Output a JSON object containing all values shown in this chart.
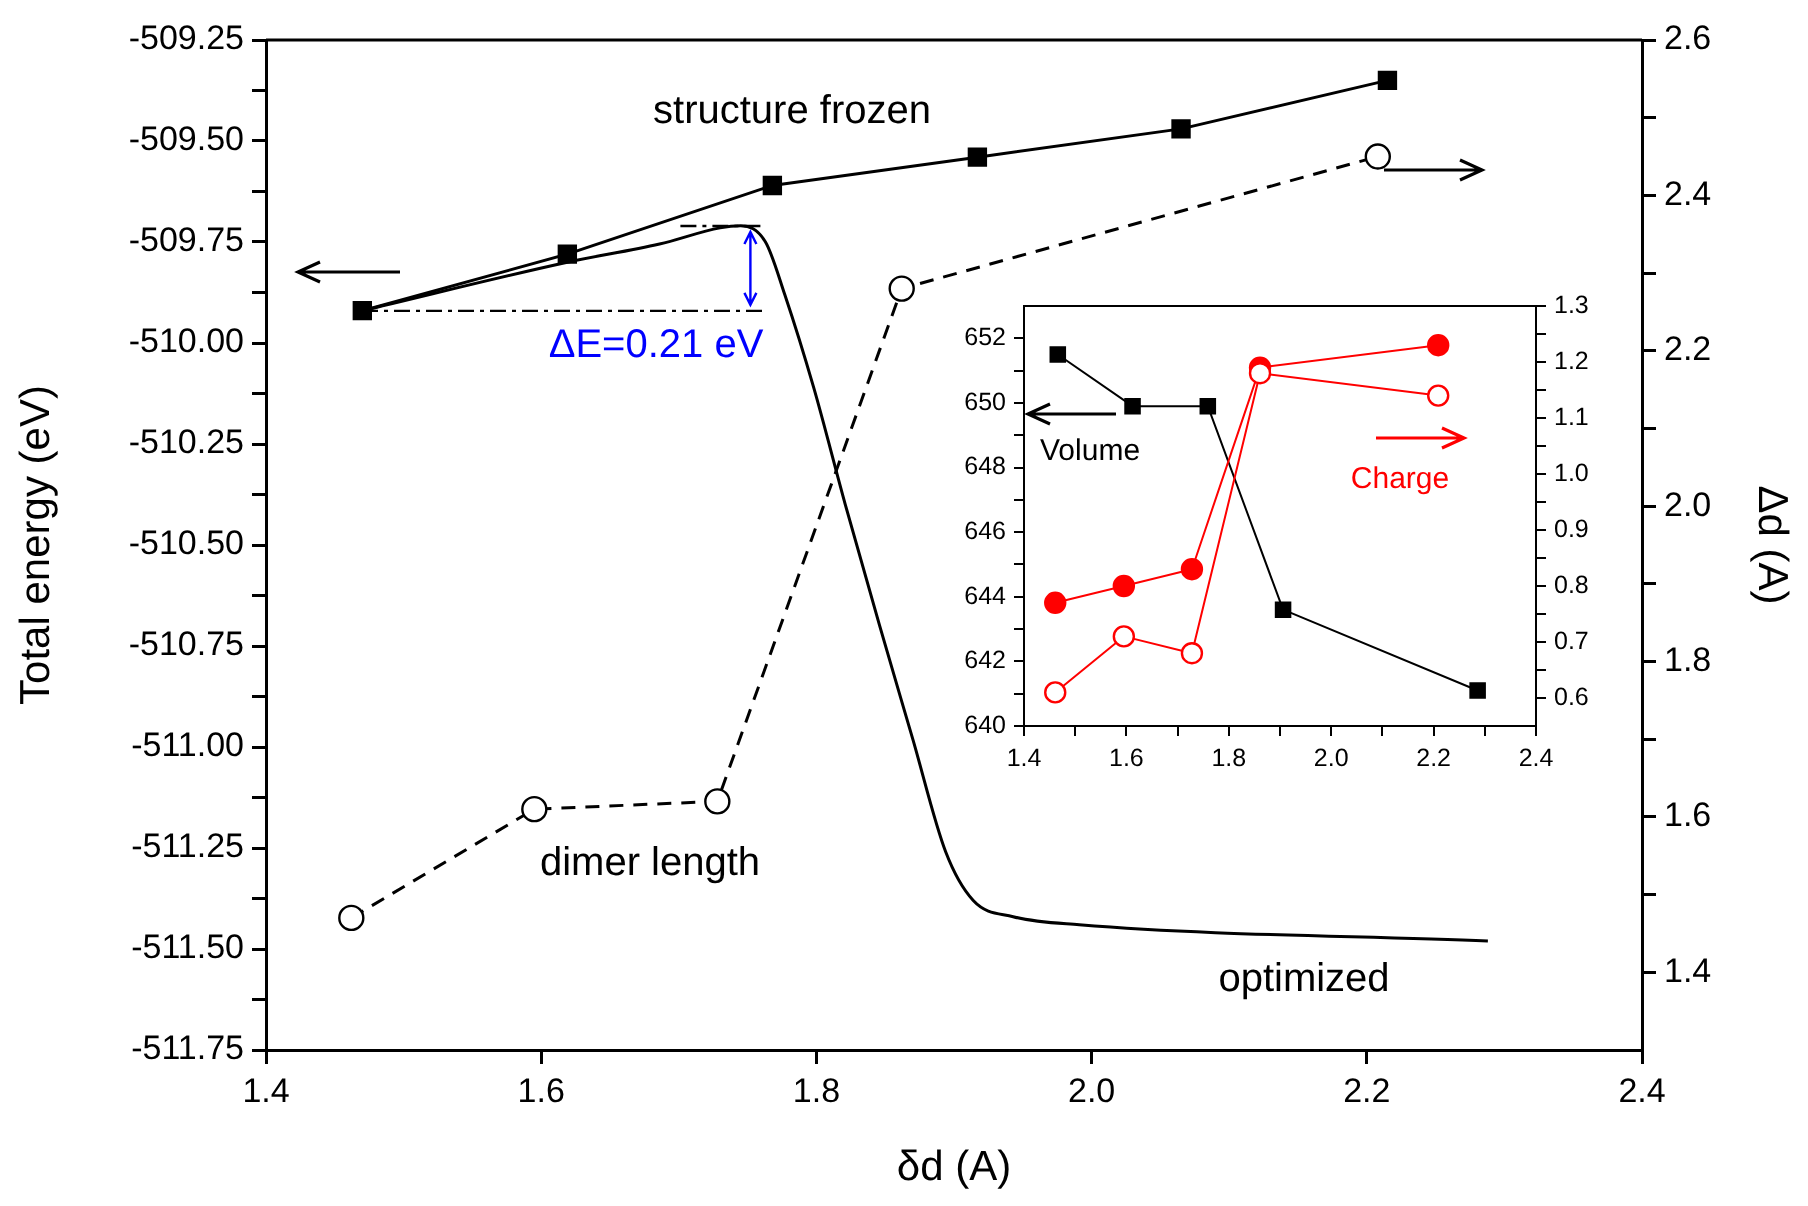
{
  "chart_data": [
    {
      "type": "line",
      "xlabel": "δd (A)",
      "ylabel": "Total energy (eV)",
      "y2label": "Δd (A)",
      "xlim": [
        1.4,
        2.4
      ],
      "xticks": [
        1.4,
        1.6,
        1.8,
        {
          "value": 2,
          "label": "2.0"
        },
        2.2,
        2.4
      ],
      "ylim": [
        -511.75,
        -509.25
      ],
      "yticks": [
        -509.25,
        {
          "value": -509.375,
          "label": null
        },
        {
          "value": -509.5,
          "label": "-509.50"
        },
        {
          "value": -509.625,
          "label": null
        },
        -509.75,
        {
          "value": -509.875,
          "label": null
        },
        {
          "value": -510,
          "label": "-510.00"
        },
        {
          "value": -510.125,
          "label": null
        },
        -510.25,
        {
          "value": -510.375,
          "label": null
        },
        {
          "value": -510.5,
          "label": "-510.50"
        },
        {
          "value": -510.625,
          "label": null
        },
        -510.75,
        {
          "value": -510.875,
          "label": null
        },
        {
          "value": -511,
          "label": "-511.00"
        },
        {
          "value": -511.125,
          "label": null
        },
        -511.25,
        {
          "value": -511.375,
          "label": null
        },
        {
          "value": -511.5,
          "label": "-511.50"
        },
        {
          "value": -511.625,
          "label": null
        },
        -511.75
      ],
      "y2lim": [
        1.3,
        2.6
      ],
      "y2ticks": [
        1.4,
        {
          "value": 1.5,
          "label": null
        },
        1.6,
        {
          "value": 1.7,
          "label": null
        },
        1.8,
        {
          "value": 1.9,
          "label": null
        },
        {
          "value": 2,
          "label": "2.0"
        },
        {
          "value": 2.1,
          "label": null
        },
        2.2,
        {
          "value": 2.3,
          "label": null
        },
        2.4,
        {
          "value": 2.5,
          "label": null
        },
        2.6
      ],
      "series": [
        {
          "name": "structure frozen",
          "color": "#000000",
          "marker": "square",
          "x": [
            1.47,
            1.619,
            1.768,
            1.917,
            2.065,
            2.215
          ],
          "values": [
            -509.92,
            -509.78,
            -509.61,
            -509.54,
            -509.47,
            -509.35
          ]
        },
        {
          "name": "dimer length",
          "color": "#000000",
          "marker": "circle_open",
          "line_style": "dashed",
          "axis": "y2",
          "x": [
            1.462,
            1.595,
            1.728,
            1.862,
            2.208
          ],
          "values": [
            1.47,
            1.61,
            1.62,
            2.28,
            2.45
          ]
        },
        {
          "name": "optimized",
          "color": "#000000",
          "marker": "none",
          "x": [
            1.47,
            1.619,
            1.686,
            1.73,
            1.745,
            1.763,
            1.777,
            1.798,
            1.821,
            1.846,
            1.87,
            1.894,
            1.914,
            1.943,
            1.991,
            2.288
          ],
          "values": [
            -509.92,
            -509.8,
            -509.755,
            -509.715,
            -509.71,
            -509.75,
            -509.88,
            -510.11,
            -510.4,
            -510.7,
            -510.98,
            -511.26,
            -511.38,
            -511.42,
            -511.44,
            -511.48
          ]
        }
      ],
      "annotations": [
        {
          "text": "ΔE=0.21 eV",
          "x": 1.745,
          "y": -509.71
        }
      ]
    },
    {
      "type": "line",
      "legend": "top",
      "xlim": [
        1.4,
        2.4
      ],
      "xticks": [
        1.4,
        {
          "value": 1.5,
          "label": null
        },
        1.6,
        {
          "value": 1.7,
          "label": null
        },
        1.8,
        {
          "value": 1.9,
          "label": null
        },
        {
          "value": 2,
          "label": "2.0"
        },
        {
          "value": 2.1,
          "label": null
        },
        2.2,
        {
          "value": 2.3,
          "label": null
        },
        2.4
      ],
      "ylim": [
        640,
        653
      ],
      "yticks": [
        640,
        {
          "value": 641,
          "label": null
        },
        642,
        {
          "value": 643,
          "label": null
        },
        644,
        {
          "value": 645,
          "label": null
        },
        646,
        {
          "value": 647,
          "label": null
        },
        648,
        {
          "value": 649,
          "label": null
        },
        650,
        {
          "value": 651,
          "label": null
        },
        652
      ],
      "y2lim": [
        0.55,
        1.3
      ],
      "y2ticks": [
        0.6,
        {
          "value": 0.65,
          "label": null
        },
        0.7,
        {
          "value": 0.75,
          "label": null
        },
        0.8,
        {
          "value": 0.85,
          "label": null
        },
        0.9,
        {
          "value": 0.95,
          "label": null
        },
        {
          "value": 1,
          "label": "1.0"
        },
        {
          "value": 1.05,
          "label": null
        },
        1.1,
        {
          "value": 1.15,
          "label": null
        },
        1.2,
        {
          "value": 1.25,
          "label": null
        },
        1.3
      ],
      "series": [
        {
          "name": "Volume",
          "color": "#000000",
          "marker": "square",
          "x": [
            1.466,
            1.612,
            1.759,
            1.906,
            2.286
          ],
          "values": [
            651.5,
            649.9,
            649.9,
            643.6,
            641.1
          ]
        },
        {
          "name": "Charge",
          "color": "#ff0000",
          "marker": "circle",
          "axis": "y2",
          "x": [
            1.461,
            1.595,
            1.728,
            1.861,
            2.209
          ],
          "values": [
            0.77,
            0.8,
            0.83,
            1.19,
            1.23
          ]
        },
        {
          "color": "#ff0000",
          "marker": "circle_open",
          "axis": "y2",
          "x": [
            1.461,
            1.595,
            1.728,
            1.861,
            2.209
          ],
          "values": [
            0.61,
            0.71,
            0.68,
            1.18,
            1.14
          ]
        }
      ]
    }
  ]
}
